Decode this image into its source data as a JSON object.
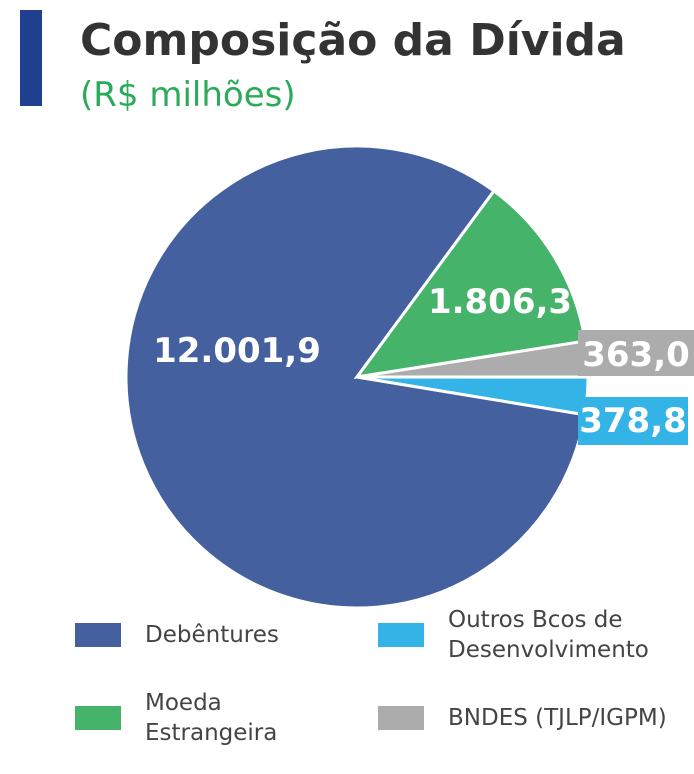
{
  "chart_data": {
    "type": "pie",
    "title": "Composição da Dívida",
    "subtitle": "(R$ milhões)",
    "categories": [
      "Debêntures",
      "Moeda Estrangeira",
      "BNDES (TJLP/IGPM)",
      "Outros Bcos de Desenvolvimento"
    ],
    "values": [
      12001.9,
      1806.3,
      363.0,
      378.8
    ],
    "value_labels": [
      "12.001,9",
      "1.806,3",
      "363,0",
      "378,8"
    ],
    "colors": [
      "#44609e",
      "#46b36b",
      "#acacac",
      "#33b3e6"
    ],
    "legend": true
  }
}
